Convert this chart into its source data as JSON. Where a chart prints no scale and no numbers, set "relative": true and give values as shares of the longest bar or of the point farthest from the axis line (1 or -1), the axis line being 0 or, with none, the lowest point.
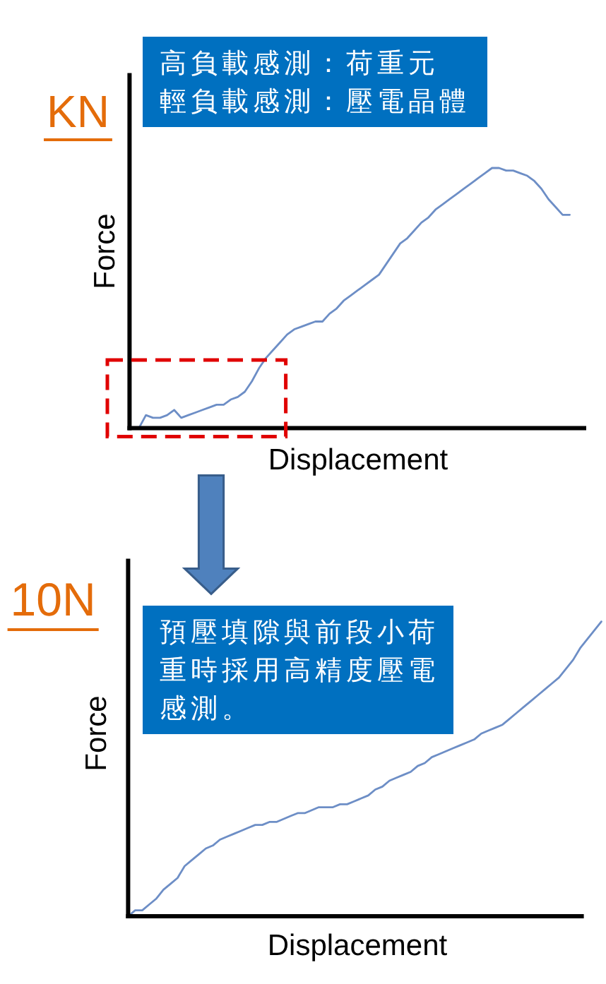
{
  "chart_data": [
    {
      "type": "line",
      "relative": true,
      "xlabel": "Displacement",
      "ylabel": "Force",
      "annotations": [
        "KN",
        "高負載感測：荷重元",
        "輕負載感測：壓電晶體"
      ],
      "categories": [
        null,
        null,
        null,
        null,
        null,
        null,
        null,
        null,
        null,
        null,
        null,
        null,
        null,
        null,
        null,
        null,
        null,
        null,
        null,
        null,
        null,
        null,
        null,
        null,
        null,
        null,
        null,
        null,
        null,
        null,
        null,
        null,
        null,
        null,
        null,
        null,
        null,
        null,
        null,
        null,
        null,
        null,
        null,
        null,
        null,
        null,
        null,
        null,
        null,
        null,
        null,
        null,
        null,
        null,
        null,
        null,
        null,
        null,
        null,
        null,
        null,
        null,
        null
      ],
      "series": [
        {
          "color": "#6d8ec6",
          "values": [
            0,
            0,
            0.05,
            0.04,
            0.04,
            0.05,
            0.07,
            0.04,
            0.05,
            0.06,
            0.07,
            0.08,
            0.09,
            0.09,
            0.11,
            0.12,
            0.14,
            0.18,
            0.23,
            0.27,
            0.3,
            0.33,
            0.36,
            0.38,
            0.39,
            0.4,
            0.41,
            0.41,
            0.44,
            0.46,
            0.49,
            0.51,
            0.53,
            0.55,
            0.57,
            0.59,
            0.63,
            0.67,
            0.71,
            0.73,
            0.76,
            0.79,
            0.81,
            0.84,
            0.86,
            0.88,
            0.9,
            0.92,
            0.94,
            0.96,
            0.98,
            1.0,
            1.0,
            0.99,
            0.99,
            0.98,
            0.97,
            0.95,
            0.92,
            0.88,
            0.85,
            0.82,
            0.82
          ]
        }
      ]
    },
    {
      "type": "line",
      "relative": true,
      "xlabel": "Displacement",
      "ylabel": "Force",
      "annotations": [
        "10N",
        "預壓填隙與前段小荷重時採用高精度壓電感測。"
      ],
      "categories": [
        null,
        null,
        null,
        null,
        null,
        null,
        null,
        null,
        null,
        null,
        null,
        null,
        null,
        null,
        null,
        null,
        null,
        null,
        null,
        null,
        null,
        null,
        null,
        null,
        null,
        null,
        null,
        null,
        null,
        null,
        null,
        null,
        null,
        null,
        null,
        null,
        null,
        null,
        null,
        null,
        null,
        null,
        null,
        null,
        null,
        null,
        null,
        null,
        null,
        null,
        null,
        null,
        null,
        null,
        null,
        null,
        null,
        null,
        null,
        null,
        null,
        null,
        null,
        null,
        null,
        null,
        null,
        null
      ],
      "series": [
        {
          "color": "#6d8ec6",
          "values": [
            0,
            0.02,
            0.02,
            0.04,
            0.06,
            0.09,
            0.11,
            0.13,
            0.17,
            0.19,
            0.21,
            0.23,
            0.24,
            0.26,
            0.27,
            0.28,
            0.29,
            0.3,
            0.31,
            0.31,
            0.32,
            0.32,
            0.33,
            0.34,
            0.35,
            0.35,
            0.36,
            0.37,
            0.37,
            0.37,
            0.38,
            0.38,
            0.39,
            0.4,
            0.41,
            0.43,
            0.44,
            0.46,
            0.47,
            0.48,
            0.49,
            0.51,
            0.52,
            0.54,
            0.55,
            0.56,
            0.57,
            0.58,
            0.59,
            0.6,
            0.62,
            0.63,
            0.64,
            0.65,
            0.67,
            0.69,
            0.71,
            0.73,
            0.75,
            0.77,
            0.79,
            0.81,
            0.84,
            0.87,
            0.91,
            0.94,
            0.97,
            1.0
          ]
        }
      ]
    }
  ]
}
